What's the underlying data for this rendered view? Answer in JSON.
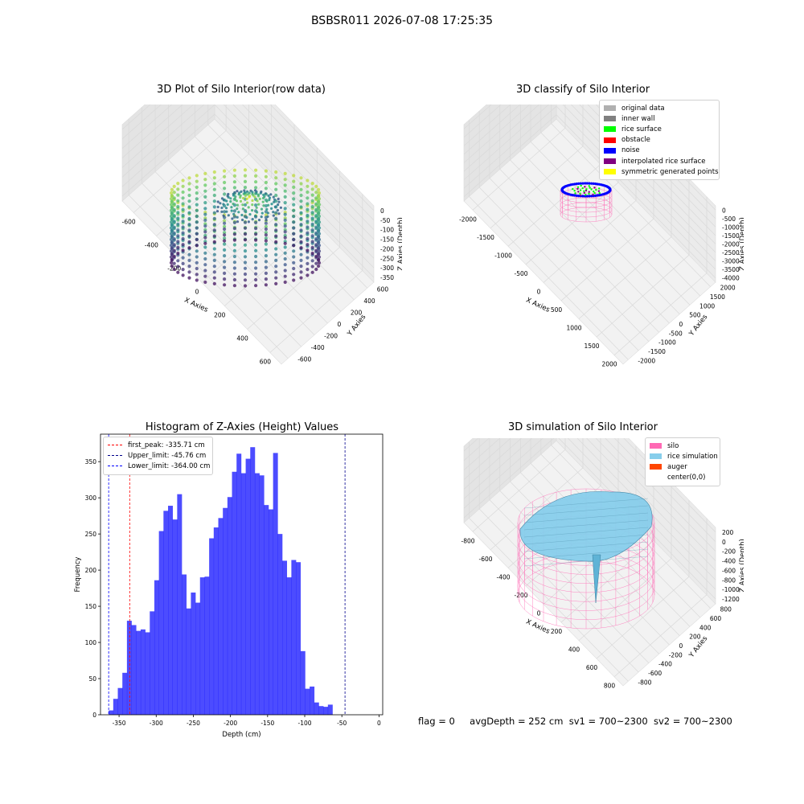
{
  "suptitle": "BSBSR011 2026-07-08 17:25:35",
  "footer": {
    "flag": "flag = 0",
    "avg": "avgDepth = 252 cm",
    "sv1": "sv1 = 700~2300",
    "sv2": "sv2 = 700~2300"
  },
  "colors": {
    "viridis_low": "#3b0f70",
    "viridis_mid": "#21918c",
    "viridis_high": "#fde725",
    "hist": "#0000ff",
    "silo": "#ff69b4",
    "rice": "#87ceeb",
    "auger": "#ff4500"
  },
  "chart_data": [
    {
      "type": "scatter",
      "title": "3D Plot of Silo Interior(row data)",
      "xlabel": "X Axies",
      "ylabel": "Y Axies",
      "zlabel": "Z Axies (Depth)",
      "x_ticks": [
        "-600",
        "-400",
        "-200",
        "0",
        "200",
        "400",
        "600"
      ],
      "y_ticks": [
        "-600",
        "-400",
        "-200",
        "0",
        "200",
        "400",
        "600"
      ],
      "z_ticks": [
        "0",
        "-50",
        "-100",
        "-150",
        "-200",
        "-250",
        "-300",
        "-350"
      ],
      "xlim": [
        -700,
        650
      ],
      "ylim": [
        -650,
        650
      ],
      "zlim": [
        -380,
        10
      ],
      "colormap": "viridis",
      "silo_radius_cm": 520,
      "z_range_cm": [
        -364,
        -46
      ]
    },
    {
      "type": "scatter",
      "title": "3D classify of Silo Interior",
      "xlabel": "X Axies",
      "ylabel": "Y Axies",
      "zlabel": "Z Axies (Depth)",
      "x_ticks": [
        "-2000",
        "-1500",
        "-1000",
        "-500",
        "0",
        "500",
        "1000",
        "1500",
        "2000"
      ],
      "y_ticks": [
        "-2000",
        "-1500",
        "-1000",
        "-500",
        "0",
        "500",
        "1000",
        "1500",
        "2000"
      ],
      "z_ticks": [
        "0",
        "-500",
        "-1000",
        "-1500",
        "-2000",
        "-2500",
        "-3000",
        "-3500",
        "-4000"
      ],
      "xlim": [
        -2200,
        2200
      ],
      "ylim": [
        -2200,
        2200
      ],
      "zlim": [
        -4100,
        100
      ],
      "legend": [
        {
          "label": "original data",
          "color": "#b0b0b0"
        },
        {
          "label": "inner wall",
          "color": "#808080"
        },
        {
          "label": "rice surface",
          "color": "#00ff00"
        },
        {
          "label": "obstacle",
          "color": "#ff0000"
        },
        {
          "label": "noise",
          "color": "#0000ff"
        },
        {
          "label": "interpolated rice surface",
          "color": "#800080"
        },
        {
          "label": "symmetric generated points",
          "color": "#ffff00"
        }
      ],
      "legend_loc": "upper right"
    },
    {
      "type": "bar",
      "title": "Histogram of Z-Axies (Height) Values",
      "xlabel": "Depth (cm)",
      "ylabel": "Frequency",
      "xlim": [
        -375,
        5
      ],
      "ylim": [
        0,
        388
      ],
      "x_ticks": [
        -350,
        -300,
        -250,
        -200,
        -150,
        -100,
        -50,
        0
      ],
      "y_ticks": [
        0,
        50,
        100,
        150,
        200,
        250,
        300,
        350
      ],
      "bin_start": -364,
      "bin_width": 6.15,
      "values": [
        6,
        22,
        37,
        58,
        130,
        124,
        116,
        118,
        114,
        143,
        186,
        254,
        282,
        289,
        270,
        305,
        194,
        147,
        169,
        155,
        190,
        191,
        244,
        259,
        272,
        286,
        301,
        336,
        361,
        334,
        354,
        370,
        334,
        331,
        290,
        284,
        362,
        250,
        213,
        190,
        214,
        211,
        88,
        36,
        39,
        17,
        12,
        11,
        14
      ],
      "vlines": [
        {
          "label": "first_peak: -335.71 cm",
          "x": -335.71,
          "color": "#ff0000"
        },
        {
          "label": "Upper_limit: -45.76 cm",
          "x": -45.76,
          "color": "#00008b"
        },
        {
          "label": "Lower_limit: -364.00 cm",
          "x": -364.0,
          "color": "#0000ff"
        }
      ],
      "legend_loc": "upper left"
    },
    {
      "type": "surface",
      "title": "3D simulation of Silo Interior",
      "xlabel": "X Axies",
      "ylabel": "Y Axies",
      "zlabel": "Z Axies (Depth)",
      "x_ticks": [
        "-800",
        "-600",
        "-400",
        "-200",
        "0",
        "200",
        "400",
        "600",
        "800"
      ],
      "y_ticks": [
        "-800",
        "-600",
        "-400",
        "-200",
        "0",
        "200",
        "400",
        "600",
        "800"
      ],
      "z_ticks": [
        "200",
        "0",
        "-200",
        "-400",
        "-600",
        "-800",
        "-1000",
        "-1200"
      ],
      "xlim": [
        -900,
        900
      ],
      "ylim": [
        -900,
        900
      ],
      "zlim": [
        -1300,
        300
      ],
      "legend": [
        {
          "label": "silo",
          "color": "#ff69b4"
        },
        {
          "label": "rice simulation",
          "color": "#87ceeb"
        },
        {
          "label": "auger",
          "color": "#ff4500"
        },
        {
          "label": "center(0,0)",
          "color": ""
        }
      ],
      "legend_loc": "upper right"
    }
  ]
}
